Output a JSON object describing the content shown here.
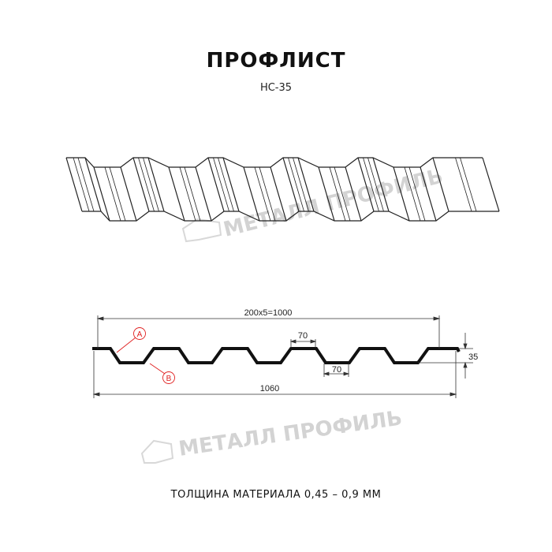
{
  "title": "ПРОФЛИСТ",
  "subtitle": "НС-35",
  "thickness_note": "ТОЛЩИНА МАТЕРИАЛА 0,45 – 0,9 ММ",
  "watermark": "МЕТАЛЛ ПРОФИЛЬ",
  "dimensions": {
    "pitch_total": "200x5=1000",
    "top_flat": "70",
    "bottom_flat": "70",
    "height": "35",
    "overall_width": "1060"
  },
  "callouts": {
    "a": "A",
    "b": "B"
  },
  "colors": {
    "line": "#111111",
    "callout": "#e02020",
    "watermark": "#d3d3d3"
  }
}
